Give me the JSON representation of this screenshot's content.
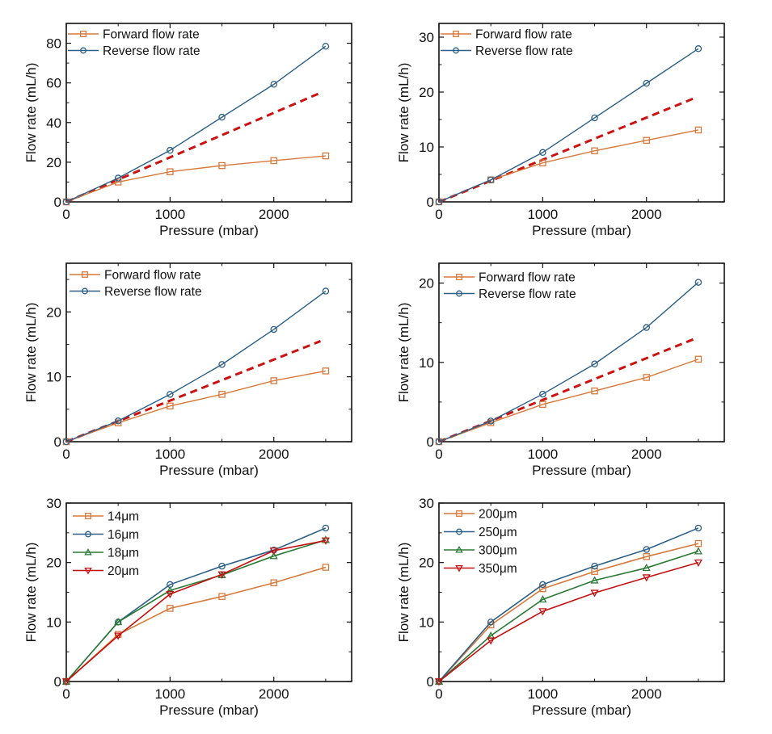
{
  "colors": {
    "forward": "#d8793a",
    "reverse": "#2b5f86",
    "ideal": "#cc1111",
    "s14": "#d8793a",
    "s16": "#2b5f86",
    "s18": "#2a7a35",
    "s20": "#c41010",
    "axis": "#111111"
  },
  "chart_data": [
    {
      "type": "line",
      "panel": "top-left",
      "xlabel": "Pressure (mbar)",
      "ylabel": "Flow rate (mL/h)",
      "xlim": [
        0,
        2750
      ],
      "ylim": [
        0,
        90
      ],
      "xticks": [
        0,
        1000,
        2000
      ],
      "xminor": [
        500,
        1500,
        2500
      ],
      "yticks": [
        0,
        20,
        40,
        60,
        80
      ],
      "yminor": [
        10,
        30,
        50,
        70
      ],
      "legend_position": "top-left",
      "x": [
        0,
        500,
        1000,
        1500,
        2000,
        2500
      ],
      "series": [
        {
          "name": "Forward flow rate",
          "marker": "square",
          "color_key": "forward",
          "values": [
            0,
            10,
            15.2,
            18.3,
            20.8,
            23.2
          ]
        },
        {
          "name": "Reverse flow rate",
          "marker": "circle",
          "color_key": "reverse",
          "values": [
            0,
            12,
            26,
            42.7,
            59.3,
            78.5
          ]
        }
      ],
      "reference_line": {
        "style": "dashed",
        "color_key": "ideal",
        "x": [
          0,
          2450
        ],
        "y": [
          0,
          55
        ]
      }
    },
    {
      "type": "line",
      "panel": "top-right",
      "xlabel": "Pressure (mbar)",
      "ylabel": "Flow rate (mL/h)",
      "xlim": [
        0,
        2750
      ],
      "ylim": [
        0,
        32.5
      ],
      "xticks": [
        0,
        1000,
        2000
      ],
      "xminor": [
        500,
        1500,
        2500
      ],
      "yticks": [
        0,
        10,
        20,
        30
      ],
      "yminor": [
        5,
        15,
        25
      ],
      "legend_position": "top-left",
      "x": [
        0,
        500,
        1000,
        1500,
        2000,
        2500
      ],
      "series": [
        {
          "name": "Forward flow rate",
          "marker": "square",
          "color_key": "forward",
          "values": [
            0,
            4,
            7.1,
            9.3,
            11.2,
            13.1
          ]
        },
        {
          "name": "Reverse flow rate",
          "marker": "circle",
          "color_key": "reverse",
          "values": [
            0,
            4,
            9,
            15.3,
            21.6,
            27.9
          ]
        }
      ],
      "reference_line": {
        "style": "dashed",
        "color_key": "ideal",
        "x": [
          0,
          2450
        ],
        "y": [
          0,
          18.8
        ]
      }
    },
    {
      "type": "line",
      "panel": "middle-left",
      "xlabel": "Pressure (mbar)",
      "ylabel": "Flow rate (mL/h)",
      "xlim": [
        0,
        2750
      ],
      "ylim": [
        0,
        27.5
      ],
      "xticks": [
        0,
        1000,
        2000
      ],
      "xminor": [
        500,
        1500,
        2500
      ],
      "yticks": [
        0,
        10,
        20
      ],
      "yminor": [
        5,
        15,
        25
      ],
      "legend_position": "top-left",
      "x": [
        0,
        500,
        1000,
        1500,
        2000,
        2500
      ],
      "series": [
        {
          "name": "Forward flow rate",
          "marker": "square",
          "color_key": "forward",
          "values": [
            0,
            2.9,
            5.5,
            7.3,
            9.4,
            10.9
          ]
        },
        {
          "name": "Reverse flow rate",
          "marker": "circle",
          "color_key": "reverse",
          "values": [
            0,
            3.2,
            7.3,
            11.9,
            17.3,
            23.2
          ]
        }
      ],
      "reference_line": {
        "style": "dashed",
        "color_key": "ideal",
        "x": [
          0,
          2450
        ],
        "y": [
          0,
          15.5
        ]
      }
    },
    {
      "type": "line",
      "panel": "middle-right",
      "xlabel": "Pressure (mbar)",
      "ylabel": "Flow rate (mL/h)",
      "xlim": [
        0,
        2750
      ],
      "ylim": [
        0,
        22.5
      ],
      "xticks": [
        0,
        1000,
        2000
      ],
      "xminor": [
        500,
        1500,
        2500
      ],
      "yticks": [
        0,
        10,
        20
      ],
      "yminor": [
        5,
        15
      ],
      "legend_position": "top-left",
      "x": [
        0,
        500,
        1000,
        1500,
        2000,
        2500
      ],
      "series": [
        {
          "name": "Forward flow rate",
          "marker": "square",
          "color_key": "forward",
          "values": [
            0,
            2.4,
            4.7,
            6.4,
            8.1,
            10.4
          ]
        },
        {
          "name": "Reverse flow rate",
          "marker": "circle",
          "color_key": "reverse",
          "values": [
            0,
            2.6,
            6,
            9.8,
            14.4,
            20.1
          ]
        }
      ],
      "reference_line": {
        "style": "dashed",
        "color_key": "ideal",
        "x": [
          0,
          2450
        ],
        "y": [
          0,
          12.9
        ]
      }
    },
    {
      "type": "line",
      "panel": "bottom-left",
      "xlabel": "Pressure (mbar)",
      "ylabel": "Flow rate (mL/h)",
      "xlim": [
        0,
        2750
      ],
      "ylim": [
        0,
        30
      ],
      "xticks": [
        0,
        1000,
        2000
      ],
      "xminor": [
        500,
        1500,
        2500
      ],
      "yticks": [
        0,
        10,
        20,
        30
      ],
      "yminor": [
        5,
        15,
        25
      ],
      "legend_position": "top-left",
      "x": [
        0,
        500,
        1000,
        1500,
        2000,
        2500
      ],
      "series": [
        {
          "name": "14μm",
          "marker": "square",
          "color_key": "s14",
          "values": [
            0,
            7.9,
            12.3,
            14.3,
            16.6,
            19.2
          ]
        },
        {
          "name": "16μm",
          "marker": "circle",
          "color_key": "s16",
          "values": [
            0,
            10,
            16.3,
            19.4,
            22.1,
            25.8
          ]
        },
        {
          "name": "18μm",
          "marker": "triangle-up",
          "color_key": "s18",
          "values": [
            0,
            10,
            15.3,
            17.9,
            21.1,
            23.8
          ]
        },
        {
          "name": "20μm",
          "marker": "triangle-down",
          "color_key": "s20",
          "values": [
            0,
            7.7,
            14.7,
            18,
            22,
            23.7
          ]
        }
      ]
    },
    {
      "type": "line",
      "panel": "bottom-right",
      "xlabel": "Pressure (mbar)",
      "ylabel": "Flow rate (mL/h)",
      "xlim": [
        0,
        2750
      ],
      "ylim": [
        0,
        30
      ],
      "xticks": [
        0,
        1000,
        2000
      ],
      "xminor": [
        500,
        1500,
        2500
      ],
      "yticks": [
        0,
        10,
        20,
        30
      ],
      "yminor": [
        5,
        15,
        25
      ],
      "legend_position": "top-left",
      "x": [
        0,
        500,
        1000,
        1500,
        2000,
        2500
      ],
      "series": [
        {
          "name": "200μm",
          "marker": "square",
          "color_key": "s14",
          "values": [
            0,
            9.5,
            15.6,
            18.5,
            21,
            23.2
          ]
        },
        {
          "name": "250μm",
          "marker": "circle",
          "color_key": "s16",
          "values": [
            0,
            10,
            16.3,
            19.4,
            22.2,
            25.8
          ]
        },
        {
          "name": "300μm",
          "marker": "triangle-up",
          "color_key": "s18",
          "values": [
            0,
            7.7,
            13.8,
            17,
            19.1,
            21.9
          ]
        },
        {
          "name": "350μm",
          "marker": "triangle-down",
          "color_key": "s20",
          "values": [
            0,
            6.9,
            11.8,
            14.9,
            17.5,
            20
          ]
        }
      ]
    }
  ]
}
